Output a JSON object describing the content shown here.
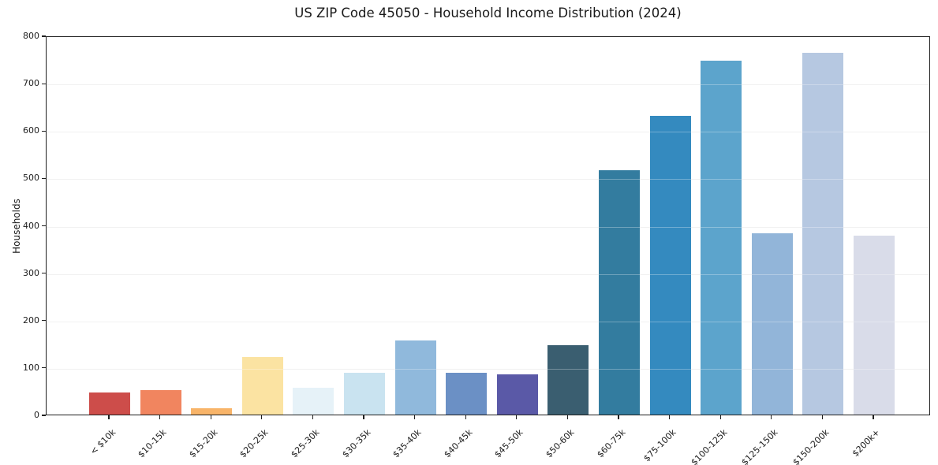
{
  "chart_data": {
    "type": "bar",
    "title": "US ZIP Code 45050 - Household Income Distribution (2024)",
    "xlabel": "",
    "ylabel": "Households",
    "ylim": [
      0,
      800
    ],
    "ytick_step": 100,
    "ytick_labels": [
      "0",
      "100",
      "200",
      "300",
      "400",
      "500",
      "600",
      "700",
      "800"
    ],
    "grid": "horizontal-only",
    "legend_position": "none",
    "categories": [
      "< $10k",
      "$10-15k",
      "$15-20k",
      "$20-25k",
      "$25-30k",
      "$30-35k",
      "$35-40k",
      "$40-45k",
      "$45-50k",
      "$50-60k",
      "$60-75k",
      "$75-100k",
      "$100-125k",
      "$125-150k",
      "$150-200k",
      "$200k+"
    ],
    "values": [
      46,
      52,
      13,
      122,
      56,
      89,
      157,
      88,
      85,
      146,
      515,
      630,
      746,
      383,
      764,
      378
    ],
    "bar_colors": [
      "#cd4d4a",
      "#f1855f",
      "#f8b469",
      "#fbe3a2",
      "#e6f2f8",
      "#c9e3f0",
      "#90b9dc",
      "#6b90c5",
      "#5a59a7",
      "#3a5e70",
      "#337c9f",
      "#348abf",
      "#5ca4cc",
      "#92b5d9",
      "#b6c8e1",
      "#d9dce9"
    ],
    "colors": {
      "background": "#ffffff",
      "spine": "#1f1f1f",
      "gridline": "#ebebeb",
      "text": "#1a1a1a"
    }
  }
}
